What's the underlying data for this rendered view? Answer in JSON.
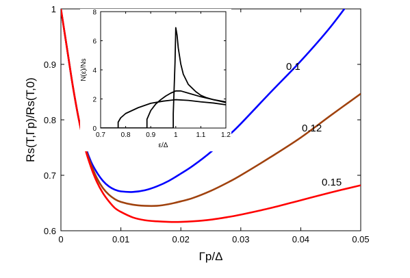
{
  "chart_data": [
    {
      "type": "line",
      "title": "",
      "xlabel": "Γp/Δ",
      "ylabel": "Rs(T,Γp)/Rs(T,0)",
      "xlim": [
        0,
        0.05
      ],
      "ylim": [
        0.6,
        1.0
      ],
      "xticks": [
        "0",
        "0.01",
        "0.02",
        "0.03",
        "0.04",
        "0.05"
      ],
      "yticks": [
        "0.6",
        "0.7",
        "0.8",
        "0.9",
        "1"
      ],
      "grid": false,
      "x": [
        0,
        0.001,
        0.002,
        0.003,
        0.004,
        0.005,
        0.006,
        0.007,
        0.008,
        0.009,
        0.01,
        0.012,
        0.014,
        0.016,
        0.018,
        0.02,
        0.022,
        0.025,
        0.028,
        0.03,
        0.035,
        0.04,
        0.045,
        0.05
      ],
      "series": [
        {
          "name": "0.1",
          "color": "#0000ff",
          "values": [
            1.0,
            0.93,
            0.86,
            0.8,
            0.755,
            0.725,
            0.705,
            0.69,
            0.68,
            0.674,
            0.671,
            0.67,
            0.673,
            0.68,
            0.69,
            0.703,
            0.717,
            0.742,
            0.772,
            0.793,
            0.85,
            0.906,
            0.968,
            1.04
          ]
        },
        {
          "name": "0.12",
          "color": "#a0420e",
          "values": [
            1.0,
            0.93,
            0.86,
            0.8,
            0.752,
            0.72,
            0.695,
            0.677,
            0.665,
            0.657,
            0.652,
            0.647,
            0.645,
            0.645,
            0.648,
            0.653,
            0.659,
            0.672,
            0.688,
            0.7,
            0.733,
            0.768,
            0.808,
            0.847
          ]
        },
        {
          "name": "0.15",
          "color": "#ff0000",
          "values": [
            1.0,
            0.93,
            0.86,
            0.8,
            0.75,
            0.715,
            0.688,
            0.668,
            0.653,
            0.641,
            0.634,
            0.624,
            0.619,
            0.617,
            0.616,
            0.616,
            0.617,
            0.62,
            0.625,
            0.629,
            0.641,
            0.655,
            0.669,
            0.682
          ]
        }
      ],
      "annotations": [
        "0.1",
        "0.12",
        "0.15"
      ]
    },
    {
      "type": "line",
      "title": "",
      "xlabel": "ε/Δ",
      "ylabel": "N(ε)/Ns",
      "xlim": [
        0.7,
        1.2
      ],
      "ylim": [
        0,
        8
      ],
      "xticks": [
        "0.7",
        "0.8",
        "0.9",
        "1",
        "1.1",
        "1.2"
      ],
      "yticks": [
        "0",
        "2",
        "4",
        "6",
        "8"
      ],
      "grid": false,
      "series": [
        {
          "name": "",
          "color": "#000000",
          "x": [
            0.7,
            0.99,
            0.99,
            0.993,
            0.997,
            1.0,
            1.005,
            1.01,
            1.02,
            1.03,
            1.05,
            1.08,
            1.1,
            1.12,
            1.15,
            1.2
          ],
          "values": [
            0,
            0,
            1.0,
            2.5,
            4.5,
            6.9,
            6.4,
            5.5,
            4.4,
            3.7,
            3.0,
            2.5,
            2.25,
            2.1,
            1.95,
            1.75
          ]
        },
        {
          "name": "",
          "color": "#000000",
          "x": [
            0.7,
            0.885,
            0.885,
            0.9,
            0.92,
            0.94,
            0.96,
            0.98,
            1.0,
            1.02,
            1.05,
            1.1,
            1.15,
            1.2
          ],
          "values": [
            0,
            0,
            0.6,
            1.2,
            1.65,
            1.95,
            2.2,
            2.4,
            2.55,
            2.55,
            2.4,
            2.15,
            1.95,
            1.8
          ]
        },
        {
          "name": "",
          "color": "#000000",
          "x": [
            0.7,
            0.77,
            0.77,
            0.78,
            0.8,
            0.85,
            0.9,
            0.95,
            1.0,
            1.05,
            1.1,
            1.15,
            1.2
          ],
          "values": [
            0,
            0,
            0.4,
            0.7,
            1.0,
            1.4,
            1.7,
            1.85,
            1.95,
            1.9,
            1.8,
            1.72,
            1.6
          ]
        }
      ]
    }
  ]
}
